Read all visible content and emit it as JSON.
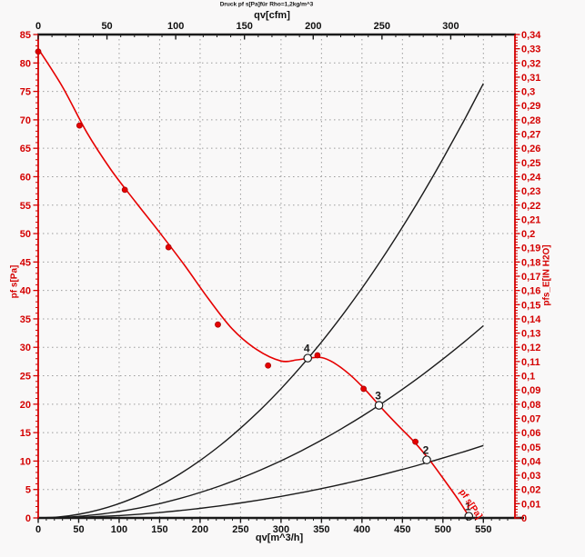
{
  "chart_data": {
    "type": "line",
    "title": "Druck pf s[Pa]für Rho=1,2kg/m^3",
    "axes": {
      "bottom": {
        "label": "qv[m^3/h]",
        "min": 0,
        "max": 589,
        "major_step": 50,
        "last_major": 550,
        "minor_step": 10,
        "color": "#1a1a1a"
      },
      "top": {
        "label": "qv[cfm]",
        "min": 0,
        "max": 346.7,
        "major_step": 50,
        "last_major": 300,
        "minor_step": 10,
        "color": "#1a1a1a"
      },
      "left": {
        "label": "pf s[Pa]",
        "min": 0,
        "max": 85,
        "major_step": 5,
        "minor_step": 1,
        "color": "#d40000"
      },
      "right": {
        "label": "pfs_E[IN H2O]",
        "min": 0,
        "max": 0.34,
        "major_step": 0.01,
        "minor_step": 0.002,
        "color": "#d40000",
        "decimal_separator": ","
      }
    },
    "grid": {
      "x_step": 50,
      "y_step": 5,
      "color": "#9c9c9c"
    },
    "series": [
      {
        "name": "fan_pressure_curve",
        "label": "pf s[Pa]",
        "color": "#e60000",
        "points": [
          [
            0,
            82.5
          ],
          [
            30,
            75.8
          ],
          [
            60,
            67.8
          ],
          [
            90,
            61.2
          ],
          [
            120,
            55.6
          ],
          [
            150,
            50.2
          ],
          [
            180,
            44.6
          ],
          [
            210,
            38.6
          ],
          [
            240,
            33.2
          ],
          [
            270,
            29.6
          ],
          [
            300,
            27.6
          ],
          [
            320,
            27.8
          ],
          [
            335,
            28.1
          ],
          [
            350,
            28.2
          ],
          [
            365,
            27.3
          ],
          [
            385,
            25.2
          ],
          [
            405,
            22.4
          ],
          [
            425,
            19.2
          ],
          [
            445,
            16.2
          ],
          [
            465,
            13.3
          ],
          [
            485,
            9.9
          ],
          [
            505,
            6.0
          ],
          [
            520,
            3.0
          ],
          [
            532,
            0.3
          ]
        ]
      },
      {
        "name": "system_curve_4",
        "color": "#1a1a1a",
        "k": 0.0002525,
        "qv_end": 550
      },
      {
        "name": "system_curve_3",
        "color": "#1a1a1a",
        "k": 0.0001117,
        "qv_end": 550
      },
      {
        "name": "system_curve_2",
        "color": "#1a1a1a",
        "k": 4.21e-05,
        "qv_end": 550
      }
    ],
    "measured_points": {
      "color": "#e60000",
      "edge_color": "#a80000",
      "points": [
        [
          0,
          82
        ],
        [
          51,
          69
        ],
        [
          107,
          57.7
        ],
        [
          161,
          47.6
        ],
        [
          222,
          34
        ],
        [
          284,
          26.8
        ],
        [
          345,
          28.6
        ],
        [
          402,
          22.7
        ],
        [
          466,
          13.4
        ]
      ]
    },
    "operating_points": [
      {
        "label": "1",
        "qv": 532,
        "pf": 0.3
      },
      {
        "label": "2",
        "qv": 480,
        "pf": 10.2
      },
      {
        "label": "3",
        "qv": 421,
        "pf": 19.8
      },
      {
        "label": "4",
        "qv": 333,
        "pf": 28.1
      }
    ],
    "curve_label": {
      "text": "pf s[Pa]",
      "color": "#e60000"
    }
  }
}
